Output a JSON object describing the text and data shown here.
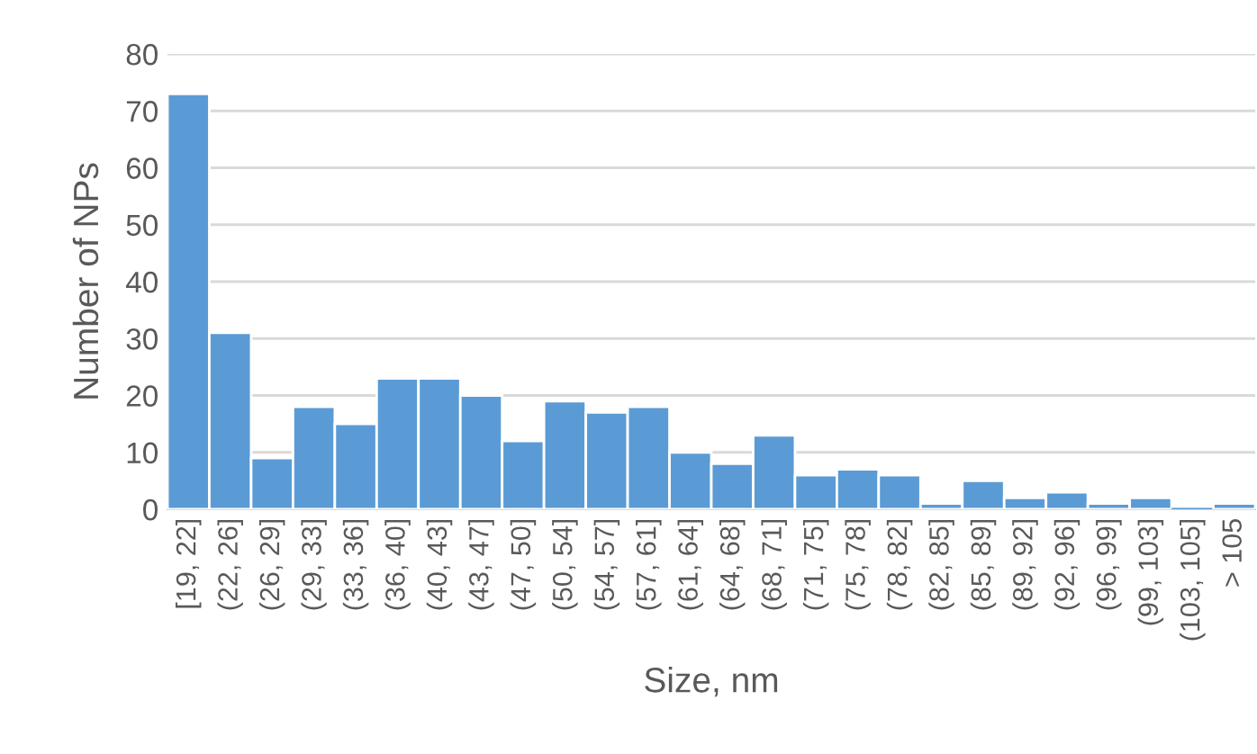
{
  "chart_data": {
    "type": "bar",
    "xlabel": "Size, nm",
    "ylabel": "Number of NPs",
    "categories": [
      "[19, 22]",
      "(22, 26]",
      "(26, 29]",
      "(29, 33]",
      "(33, 36]",
      "(36, 40]",
      "(40, 43]",
      "(43, 47]",
      "(47, 50]",
      "(50, 54]",
      "(54, 57]",
      "(57, 61]",
      "(61, 64]",
      "(64, 68]",
      "(68, 71]",
      "(71, 75]",
      "(75, 78]",
      "(78, 82]",
      "(82, 85]",
      "(85, 89]",
      "(89, 92]",
      "(92, 96]",
      "(96, 99]",
      "(99, 103]",
      "(103, 105]",
      "> 105"
    ],
    "values": [
      73,
      31,
      9,
      18,
      15,
      23,
      23,
      20,
      12,
      19,
      17,
      18,
      10,
      8,
      13,
      6,
      7,
      6,
      1,
      5,
      2,
      3,
      1,
      2,
      0,
      1
    ],
    "color": "#5b9bd5",
    "ylim": [
      0,
      80
    ],
    "yticks": [
      0,
      10,
      20,
      30,
      40,
      50,
      60,
      70,
      80
    ],
    "grid": "y"
  }
}
